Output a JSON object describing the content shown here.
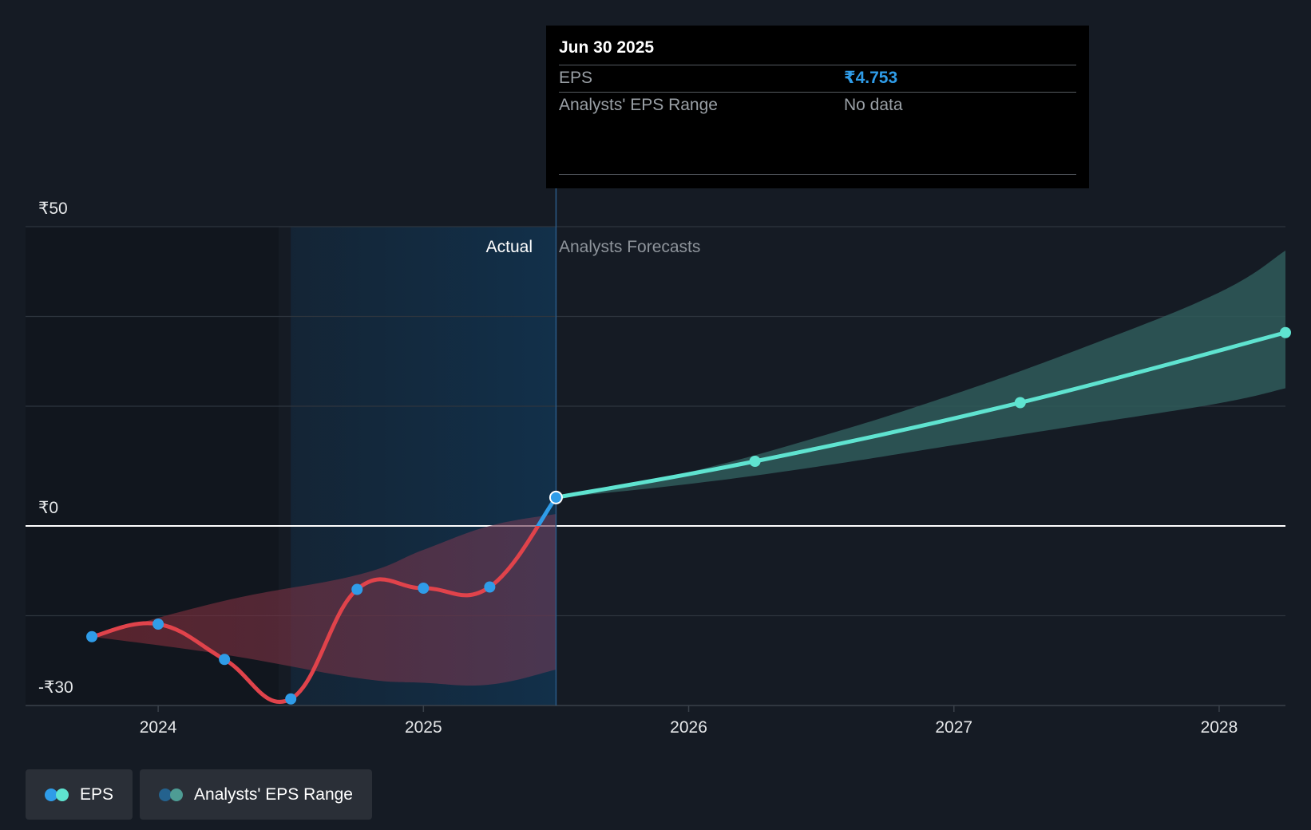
{
  "tooltip": {
    "date": "Jun 30 2025",
    "rows": [
      {
        "label": "EPS",
        "value": "₹4.753"
      },
      {
        "label": "Analysts' EPS Range",
        "value": "No data"
      }
    ]
  },
  "sections": {
    "actual": "Actual",
    "forecast": "Analysts Forecasts"
  },
  "legend": [
    {
      "label": "EPS",
      "colors": [
        "#2f9ce8",
        "#5fe3d0"
      ]
    },
    {
      "label": "Analysts' EPS Range",
      "colors": [
        "#24628e",
        "#4e9c94"
      ]
    }
  ],
  "colors": {
    "background": "#151b24",
    "eps_negative": "#e0434b",
    "eps_positive": "#2f9ce8",
    "eps_forecast": "#5fe3d0",
    "marker": "#2f9ce8",
    "range_past": "#7a2a34",
    "range_forecast": "#2f5b5b",
    "actual_highlight": "#12304a"
  },
  "chart_data": {
    "type": "line",
    "title": "",
    "xlabel": "",
    "ylabel": "",
    "ylim": [
      -30,
      50
    ],
    "x_range": [
      2023.5,
      2028.25
    ],
    "y_ticks": [
      {
        "value": 50,
        "label": "₹50"
      },
      {
        "value": 0,
        "label": "₹0"
      },
      {
        "value": -30,
        "label": "-₹30"
      }
    ],
    "x_ticks": [
      {
        "value": 2024,
        "label": "2024"
      },
      {
        "value": 2025,
        "label": "2025"
      },
      {
        "value": 2026,
        "label": "2026"
      },
      {
        "value": 2027,
        "label": "2027"
      },
      {
        "value": 2028,
        "label": "2028"
      }
    ],
    "actual_region": [
      2024.5,
      2025.5
    ],
    "series": [
      {
        "name": "EPS",
        "type": "actual",
        "points": [
          {
            "x": 2023.75,
            "y": -18.5
          },
          {
            "x": 2024.0,
            "y": -16.4
          },
          {
            "x": 2024.25,
            "y": -22.3
          },
          {
            "x": 2024.5,
            "y": -28.9
          },
          {
            "x": 2024.75,
            "y": -10.6
          },
          {
            "x": 2025.0,
            "y": -10.4
          },
          {
            "x": 2025.25,
            "y": -10.2
          },
          {
            "x": 2025.5,
            "y": 4.753
          }
        ]
      },
      {
        "name": "EPS",
        "type": "forecast",
        "points": [
          {
            "x": 2025.5,
            "y": 4.753
          },
          {
            "x": 2026.25,
            "y": 10.8
          },
          {
            "x": 2027.25,
            "y": 20.6
          },
          {
            "x": 2028.25,
            "y": 32.3
          }
        ]
      }
    ],
    "ranges": [
      {
        "name": "Analysts' EPS Range",
        "period": "past",
        "x": [
          2023.75,
          2024.25,
          2024.75,
          2025.0,
          2025.25,
          2025.5
        ],
        "low": [
          -18.5,
          -21.5,
          -25.4,
          -26.2,
          -26.5,
          -24.0
        ],
        "high": [
          -18.5,
          -12.5,
          -8.2,
          -4.0,
          0.0,
          2.0
        ]
      },
      {
        "name": "Analysts' EPS Range",
        "period": "forecast",
        "x": [
          2025.5,
          2026.0,
          2026.5,
          2027.0,
          2027.5,
          2028.0,
          2028.25
        ],
        "low": [
          4.7,
          7.0,
          10.0,
          13.5,
          17.0,
          20.5,
          23.0
        ],
        "high": [
          4.7,
          9.0,
          15.0,
          22.0,
          30.0,
          39.0,
          46.0
        ]
      }
    ]
  }
}
